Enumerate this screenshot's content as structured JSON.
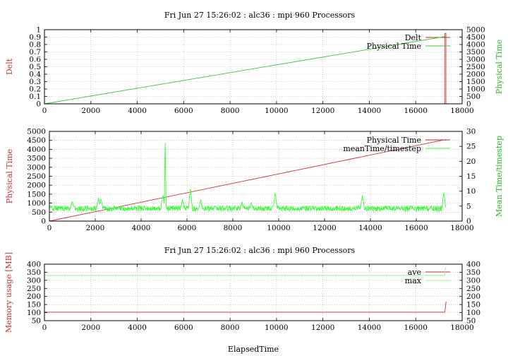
{
  "chart_data": [
    {
      "type": "line",
      "title": "Fri Jun 27 15:26:02 : alc36 : mpi 960 Processors",
      "ylabel": "Delt",
      "y2label": "Physical Time",
      "xlim": [
        0,
        18000
      ],
      "xticks": [
        0,
        2000,
        4000,
        6000,
        8000,
        10000,
        12000,
        14000,
        16000,
        18000
      ],
      "ylim": [
        0,
        1
      ],
      "yticks": [
        0,
        0.1,
        0.2,
        0.3,
        0.4,
        0.5,
        0.6,
        0.7,
        0.8,
        0.9,
        1
      ],
      "y2lim": [
        0,
        5000
      ],
      "y2ticks": [
        0,
        500,
        1000,
        1500,
        2000,
        2500,
        3000,
        3500,
        4000,
        4500,
        5000
      ],
      "grid": true,
      "legend_position": "top-right",
      "series": [
        {
          "name": "Delt",
          "axis": "y",
          "color": "#cc3333",
          "x": [
            0,
            0,
            30,
            17250,
            17250,
            17300,
            17300
          ],
          "y": [
            1.0,
            0.0,
            0.0,
            0.0,
            0.95,
            0.95,
            0.0
          ]
        },
        {
          "name": "Physical Time",
          "axis": "y2",
          "color": "#33cc33",
          "x": [
            0,
            17300
          ],
          "y": [
            0,
            4550
          ]
        }
      ]
    },
    {
      "type": "line",
      "title": "",
      "ylabel": "Physical Time",
      "y2label": "Mean Time/timestep",
      "xlim": [
        0,
        18000
      ],
      "xticks": [
        0,
        2000,
        4000,
        6000,
        8000,
        10000,
        12000,
        14000,
        16000,
        18000
      ],
      "ylim": [
        0,
        5000
      ],
      "yticks": [
        0,
        500,
        1000,
        1500,
        2000,
        2500,
        3000,
        3500,
        4000,
        4500,
        5000
      ],
      "y2lim": [
        0,
        30
      ],
      "y2ticks": [
        0,
        5,
        10,
        15,
        20,
        25,
        30
      ],
      "grid": true,
      "legend_position": "top-right",
      "series": [
        {
          "name": "Physical Time",
          "axis": "y",
          "color": "#cc3333",
          "x": [
            0,
            17300
          ],
          "y": [
            0,
            4550
          ]
        },
        {
          "name": "meanTime/timestep",
          "axis": "y2",
          "color": "#33ff33",
          "baseline": 4.2,
          "noise": 0.9,
          "x_start": 0,
          "x_end": 17300,
          "spikes": [
            {
              "x": 1000,
              "y": 6.5
            },
            {
              "x": 2150,
              "y": 8.0
            },
            {
              "x": 2250,
              "y": 7.5
            },
            {
              "x": 4950,
              "y": 9.0
            },
            {
              "x": 5050,
              "y": 27.5
            },
            {
              "x": 5800,
              "y": 7.0
            },
            {
              "x": 6150,
              "y": 10.5
            },
            {
              "x": 6600,
              "y": 6.8
            },
            {
              "x": 8400,
              "y": 6.3
            },
            {
              "x": 8800,
              "y": 6.0
            },
            {
              "x": 9850,
              "y": 9.5
            },
            {
              "x": 13650,
              "y": 8.5
            },
            {
              "x": 17200,
              "y": 9.5
            }
          ]
        }
      ]
    },
    {
      "type": "line",
      "title": "Fri Jun 27 15:26:02 : alc36 : mpi 960 Processors",
      "xlabel": "ElapsedTime",
      "ylabel": "Memory usage [MB]",
      "y2label": "",
      "xlim": [
        0,
        18000
      ],
      "xticks": [
        0,
        2000,
        4000,
        6000,
        8000,
        10000,
        12000,
        14000,
        16000,
        18000
      ],
      "ylim": [
        50,
        400
      ],
      "yticks": [
        50,
        100,
        150,
        200,
        250,
        300,
        350,
        400
      ],
      "y2lim": [
        50,
        400
      ],
      "y2ticks": [
        50,
        100,
        150,
        200,
        250,
        300,
        350,
        400
      ],
      "grid": true,
      "legend_position": "top-right",
      "series": [
        {
          "name": "ave",
          "axis": "y",
          "color": "#cc3333",
          "x": [
            0,
            17250,
            17280,
            17300,
            17310
          ],
          "y": [
            103,
            103,
            130,
            160,
            168
          ]
        },
        {
          "name": "max",
          "axis": "y",
          "color": "#99ee99",
          "x": [
            0,
            17250,
            17260,
            17300,
            17320
          ],
          "y": [
            330,
            330,
            365,
            380,
            382
          ]
        }
      ]
    }
  ]
}
